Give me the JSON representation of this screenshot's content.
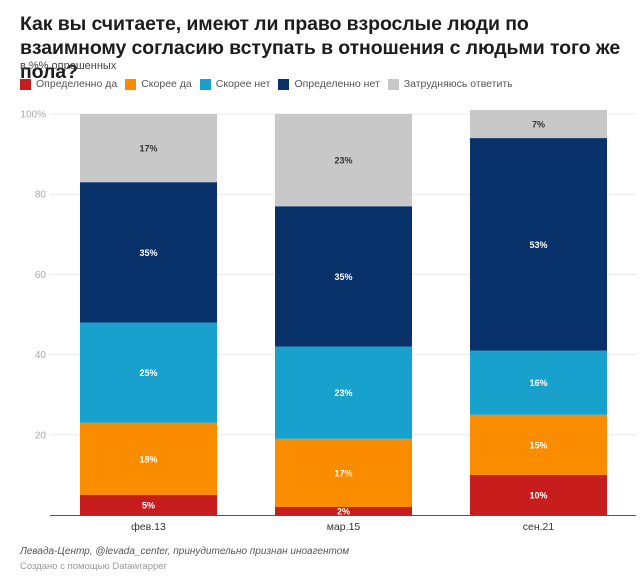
{
  "chart_data": {
    "type": "bar",
    "stacked": true,
    "title": "Как вы считаете, имеют ли право взрослые люди по взаимному согласию вступать в отношения с людьми того же пола?",
    "subtitle": "в %% опрошенных",
    "xlabel": "",
    "ylabel": "",
    "ylim": [
      0,
      100
    ],
    "yticks": [
      {
        "value": 0,
        "label": ""
      },
      {
        "value": 20,
        "label": "20"
      },
      {
        "value": 40,
        "label": "40"
      },
      {
        "value": 60,
        "label": "60"
      },
      {
        "value": 80,
        "label": "80"
      },
      {
        "value": 100,
        "label": "100%"
      }
    ],
    "grid": true,
    "legend_position": "top-left",
    "categories": [
      "фев.13",
      "мар.15",
      "сен.21"
    ],
    "series": [
      {
        "name": "Определенно да",
        "color": "#c71e1d",
        "label_color": "#ffffff",
        "values": [
          5,
          2,
          10
        ]
      },
      {
        "name": "Скорее да",
        "color": "#fa8c00",
        "label_color": "#ffffff",
        "values": [
          18,
          17,
          15
        ]
      },
      {
        "name": "Скорее нет",
        "color": "#18a1cd",
        "label_color": "#ffffff",
        "values": [
          25,
          23,
          16
        ]
      },
      {
        "name": "Определенно нет",
        "color": "#09326b",
        "label_color": "#ffffff",
        "values": [
          35,
          35,
          53
        ]
      },
      {
        "name": "Затрудняюсь ответить",
        "color": "#c8c8c8",
        "label_color": "#333333",
        "values": [
          17,
          23,
          7
        ]
      }
    ],
    "value_suffix": "%"
  },
  "footer": {
    "source": "Левада-Центр, @levada_center, принудительно признан иноагентом",
    "credit": "Создано с помощью Datawrapper"
  }
}
